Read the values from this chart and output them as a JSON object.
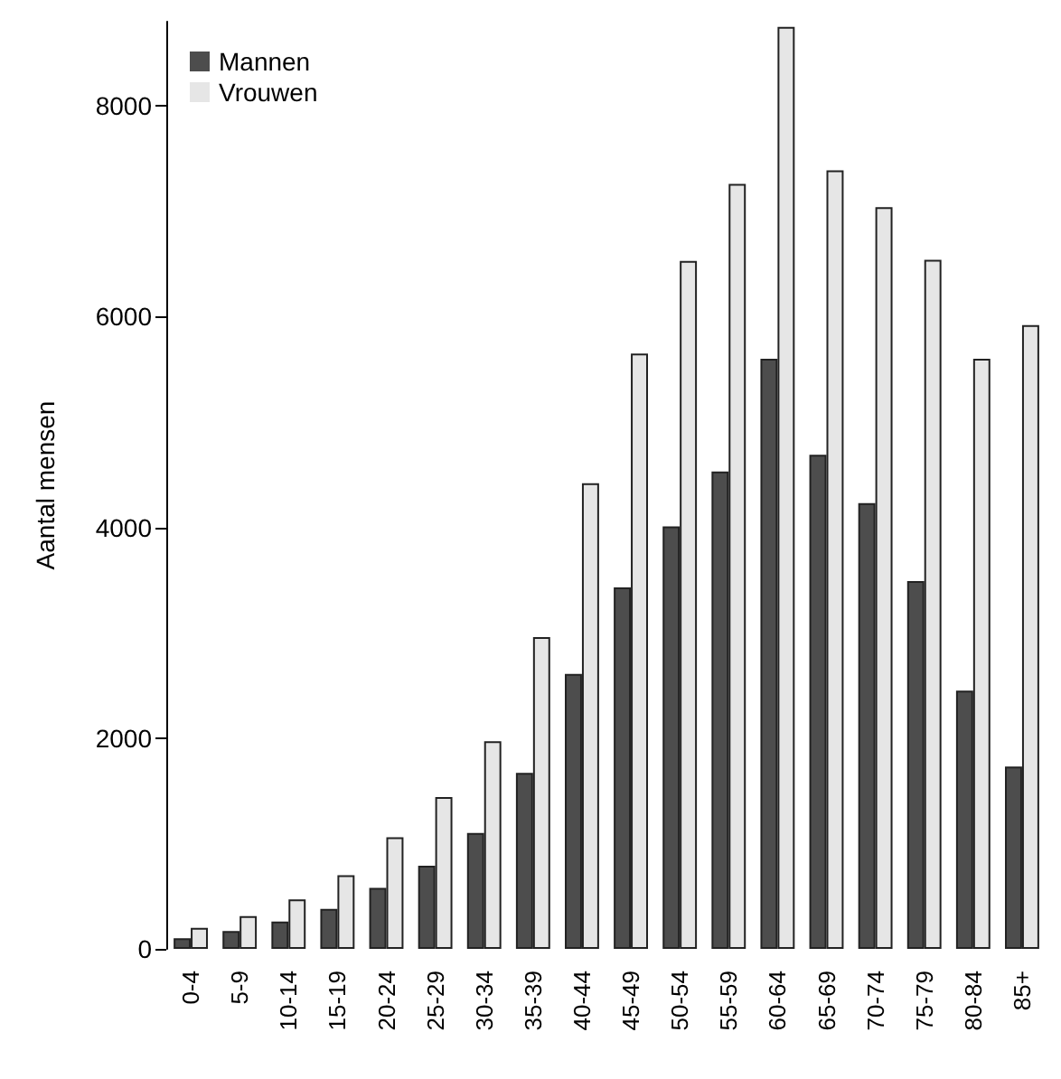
{
  "chart_data": {
    "type": "bar",
    "ylabel": "Aantal mensen",
    "categories": [
      "0-4",
      "5-9",
      "10-14",
      "15-19",
      "20-24",
      "25-29",
      "30-34",
      "35-39",
      "40-44",
      "45-49",
      "50-54",
      "55-59",
      "60-64",
      "65-69",
      "70-74",
      "75-79",
      "80-84",
      "85+"
    ],
    "series": [
      {
        "name": "Mannen",
        "color": "#4d4d4d",
        "values": [
          100,
          170,
          260,
          380,
          580,
          790,
          1100,
          1670,
          2610,
          3430,
          4010,
          4530,
          5600,
          4690,
          4230,
          3490,
          2450,
          1730
        ]
      },
      {
        "name": "Vrouwen",
        "color": "#e6e6e6",
        "values": [
          200,
          310,
          470,
          700,
          1060,
          1440,
          1970,
          2960,
          4420,
          5650,
          6530,
          7260,
          8750,
          7390,
          7040,
          6540,
          5600,
          5920
        ]
      }
    ],
    "ylim": [
      0,
      8800
    ],
    "yticks": [
      0,
      2000,
      4000,
      6000,
      8000
    ],
    "grid": false,
    "legend": "top left"
  }
}
